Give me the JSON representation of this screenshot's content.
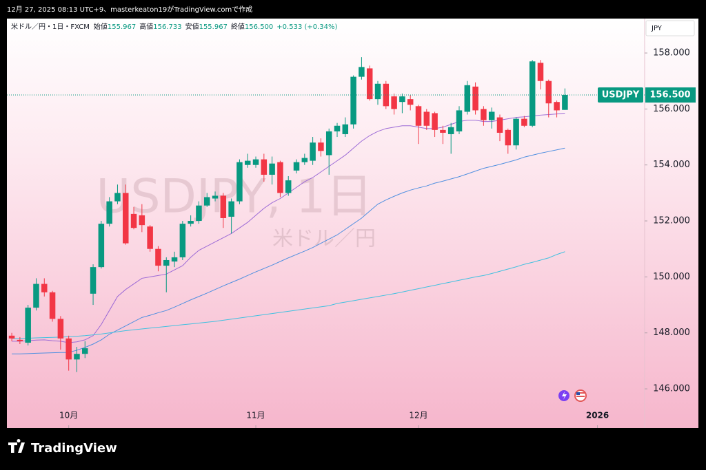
{
  "header": "12月 27, 2025 08:13 UTC+9、masterkeaton19がTradingView.comで作成",
  "footer": "TradingView",
  "chart_data": {
    "type": "candlestick",
    "legend": {
      "symbol": "米ドル／円・1日・FXCM",
      "items": [
        {
          "label": "始値",
          "value": "155.967"
        },
        {
          "label": "高値",
          "value": "156.733"
        },
        {
          "label": "安値",
          "value": "155.967"
        },
        {
          "label": "終値",
          "value": "156.500"
        }
      ],
      "change": "+0.533 (+0.34%)"
    },
    "currency": "JPY",
    "watermark": "USDJPY, 1日",
    "watermark_sub": "米ドル／円",
    "last_label": "USDJPY",
    "last_value_label": "156.500",
    "up_color": "#089981",
    "down_color": "#f23645",
    "categories": [
      null,
      null,
      null,
      null,
      null,
      null,
      null,
      null,
      null,
      null,
      null,
      null,
      null,
      null,
      null,
      null,
      null,
      null,
      null,
      null,
      null,
      null,
      null,
      null,
      null,
      null,
      null,
      null,
      null,
      null,
      null,
      null,
      null,
      null,
      null,
      null,
      null,
      null,
      null,
      null,
      null,
      null,
      null,
      null,
      null,
      null,
      null,
      null,
      null,
      null,
      null,
      null,
      null,
      null,
      null,
      null,
      null,
      null,
      null,
      null,
      null,
      null,
      null,
      null,
      null,
      null,
      null,
      null,
      null
    ],
    "open": [
      147.9,
      147.75,
      147.65,
      148.9,
      149.75,
      149.45,
      148.5,
      147.8,
      147.05,
      147.25,
      149.4,
      150.35,
      151.9,
      152.7,
      153.0,
      152.25,
      152.2,
      151.8,
      151.0,
      150.4,
      150.55,
      150.7,
      151.9,
      152.0,
      152.55,
      152.8,
      152.9,
      152.15,
      152.7,
      154.0,
      154.0,
      154.2,
      153.65,
      154.1,
      153.0,
      153.8,
      154.1,
      154.15,
      154.8,
      154.35,
      155.2,
      155.1,
      155.45,
      157.15,
      157.45,
      156.35,
      156.9,
      156.45,
      156.25,
      156.35,
      156.1,
      155.9,
      155.85,
      155.25,
      155.1,
      155.2,
      155.9,
      156.8,
      156.0,
      155.6,
      155.7,
      155.25,
      154.7,
      155.65,
      155.4,
      157.65,
      157.0,
      156.25,
      155.967
    ],
    "high": [
      148.0,
      147.85,
      149.0,
      149.95,
      149.95,
      149.5,
      148.6,
      147.9,
      147.5,
      147.7,
      150.45,
      152.0,
      152.85,
      153.3,
      153.3,
      152.5,
      152.6,
      151.85,
      151.1,
      150.7,
      150.9,
      152.0,
      152.2,
      152.7,
      153.0,
      153.05,
      153.0,
      152.8,
      154.2,
      154.4,
      154.3,
      154.4,
      154.3,
      154.15,
      153.6,
      154.2,
      154.4,
      155.0,
      154.95,
      155.3,
      155.5,
      155.7,
      157.2,
      157.85,
      157.55,
      157.0,
      157.0,
      156.55,
      156.55,
      156.5,
      156.15,
      156.0,
      155.9,
      155.4,
      155.5,
      156.1,
      157.0,
      156.95,
      156.1,
      156.05,
      155.8,
      155.3,
      155.7,
      155.75,
      157.75,
      157.75,
      157.05,
      156.3,
      156.733
    ],
    "low": [
      147.7,
      147.6,
      147.55,
      148.8,
      149.3,
      148.4,
      147.4,
      146.65,
      146.6,
      147.1,
      149.0,
      150.3,
      151.8,
      152.6,
      151.15,
      151.7,
      151.6,
      150.9,
      150.2,
      149.45,
      150.35,
      150.6,
      151.8,
      151.9,
      152.5,
      152.7,
      151.75,
      151.55,
      152.6,
      153.9,
      153.9,
      153.4,
      153.3,
      152.85,
      152.9,
      153.7,
      154.0,
      154.0,
      154.3,
      153.65,
      155.0,
      155.0,
      155.3,
      157.05,
      156.3,
      156.15,
      156.0,
      155.8,
      155.85,
      155.95,
      154.75,
      155.25,
      155.0,
      154.75,
      154.4,
      155.1,
      155.8,
      155.8,
      155.4,
      155.3,
      154.85,
      154.4,
      154.55,
      155.35,
      155.35,
      156.7,
      155.7,
      155.7,
      155.967
    ],
    "close": [
      147.8,
      147.7,
      148.9,
      149.75,
      149.45,
      148.5,
      147.8,
      147.05,
      147.25,
      147.45,
      150.35,
      151.9,
      152.7,
      153.0,
      151.2,
      151.75,
      151.85,
      151.0,
      150.4,
      150.6,
      150.7,
      151.9,
      152.0,
      152.55,
      152.85,
      152.9,
      152.1,
      152.7,
      154.1,
      154.15,
      154.2,
      153.65,
      154.05,
      153.0,
      153.45,
      154.1,
      154.25,
      154.8,
      154.5,
      155.2,
      155.4,
      155.45,
      157.15,
      157.5,
      156.35,
      156.9,
      156.1,
      156.0,
      156.45,
      156.15,
      155.4,
      155.4,
      155.25,
      155.15,
      155.35,
      155.95,
      156.85,
      155.95,
      155.6,
      155.9,
      155.15,
      154.7,
      155.65,
      155.4,
      157.7,
      157.0,
      156.2,
      155.95,
      156.5
    ],
    "lines": [
      {
        "color": "#9c6ad6",
        "values": [
          147.7,
          147.7,
          147.72,
          147.74,
          147.75,
          147.72,
          147.7,
          147.65,
          147.68,
          147.75,
          147.9,
          148.3,
          148.8,
          149.3,
          149.55,
          149.75,
          149.95,
          150.0,
          150.05,
          150.1,
          150.25,
          150.4,
          150.7,
          150.95,
          151.1,
          151.25,
          151.4,
          151.55,
          151.75,
          151.95,
          152.2,
          152.45,
          152.65,
          152.8,
          153.0,
          153.2,
          153.4,
          153.55,
          153.75,
          153.95,
          154.15,
          154.35,
          154.6,
          154.85,
          155.05,
          155.2,
          155.3,
          155.35,
          155.4,
          155.4,
          155.35,
          155.3,
          155.3,
          155.35,
          155.45,
          155.55,
          155.6,
          155.6,
          155.55,
          155.55,
          155.6,
          155.65,
          155.7,
          155.72,
          155.75,
          155.78,
          155.8,
          155.82,
          155.85
        ]
      },
      {
        "color": "#4f8fe0",
        "values": [
          147.25,
          147.25,
          147.26,
          147.27,
          147.28,
          147.29,
          147.3,
          147.3,
          147.38,
          147.48,
          147.6,
          147.75,
          147.95,
          148.1,
          148.25,
          148.4,
          148.55,
          148.63,
          148.72,
          148.8,
          148.92,
          149.05,
          149.18,
          149.3,
          149.42,
          149.55,
          149.68,
          149.8,
          149.92,
          150.05,
          150.18,
          150.3,
          150.42,
          150.55,
          150.68,
          150.8,
          150.92,
          151.05,
          151.2,
          151.35,
          151.5,
          151.7,
          151.9,
          152.1,
          152.35,
          152.6,
          152.75,
          152.88,
          153.0,
          153.1,
          153.18,
          153.25,
          153.35,
          153.42,
          153.5,
          153.58,
          153.68,
          153.78,
          153.88,
          153.95,
          154.02,
          154.1,
          154.18,
          154.28,
          154.35,
          154.42,
          154.48,
          154.54,
          154.6
        ]
      },
      {
        "color": "#3fc1e0",
        "values": [
          147.8,
          147.8,
          147.81,
          147.82,
          147.83,
          147.84,
          147.85,
          147.86,
          147.88,
          147.9,
          147.93,
          147.96,
          148.0,
          148.04,
          148.08,
          148.11,
          148.14,
          148.17,
          148.2,
          148.23,
          148.26,
          148.29,
          148.32,
          148.35,
          148.38,
          148.41,
          148.45,
          148.49,
          148.53,
          148.57,
          148.61,
          148.65,
          148.69,
          148.73,
          148.77,
          148.81,
          148.85,
          148.89,
          148.93,
          148.97,
          149.05,
          149.1,
          149.15,
          149.2,
          149.25,
          149.3,
          149.35,
          149.4,
          149.46,
          149.52,
          149.58,
          149.64,
          149.7,
          149.76,
          149.82,
          149.88,
          149.94,
          150.0,
          150.05,
          150.12,
          150.2,
          150.28,
          150.36,
          150.45,
          150.52,
          150.6,
          150.68,
          150.8,
          150.9
        ]
      }
    ],
    "xlim": [
      -0.6,
      77.8
    ],
    "xticks": [
      {
        "value": 7,
        "label": "10月"
      },
      {
        "value": 30,
        "label": "11月"
      },
      {
        "value": 50,
        "label": "12月"
      },
      {
        "value": 72,
        "label": "2026"
      }
    ],
    "ylim": [
      144.6,
      159.23
    ],
    "yticks": [
      {
        "value": 146,
        "label": "146.000"
      },
      {
        "value": 148,
        "label": "148.000"
      },
      {
        "value": 150,
        "label": "150.000"
      },
      {
        "value": 152,
        "label": "152.000"
      },
      {
        "value": 154,
        "label": "154.000"
      },
      {
        "value": 156,
        "label": "156.000"
      },
      {
        "value": 158,
        "label": "158.000"
      }
    ]
  }
}
